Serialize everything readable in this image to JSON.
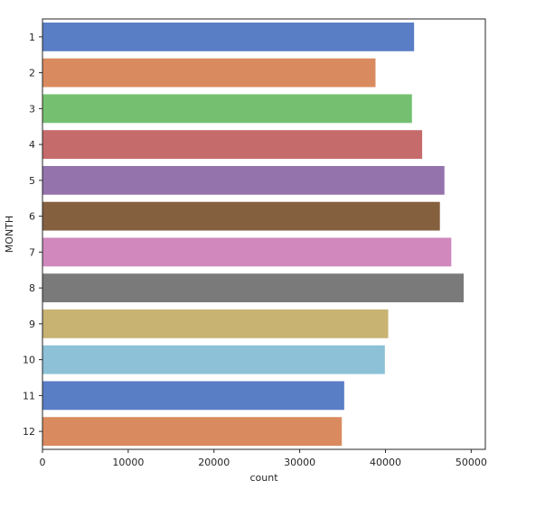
{
  "chart_data": {
    "type": "bar",
    "orientation": "horizontal",
    "title": "",
    "xlabel": "count",
    "ylabel": "MONTH",
    "categories": [
      "1",
      "2",
      "3",
      "4",
      "5",
      "6",
      "7",
      "8",
      "9",
      "10",
      "11",
      "12"
    ],
    "values": [
      43340,
      38840,
      43090,
      44280,
      46880,
      46350,
      47680,
      49120,
      40320,
      39930,
      35190,
      34910
    ],
    "colors": [
      "#5a7ec5",
      "#d98b5f",
      "#75c070",
      "#c56b6b",
      "#9473ad",
      "#85603f",
      "#d088bd",
      "#7a7a7a",
      "#c8b373",
      "#8cc1d8",
      "#5a7ec5",
      "#d98b5f"
    ],
    "xlim": [
      0,
      51650
    ],
    "xticks": [
      0,
      10000,
      20000,
      30000,
      40000,
      50000
    ],
    "xtick_labels": [
      "0",
      "10000",
      "20000",
      "30000",
      "40000",
      "50000"
    ],
    "grid": false,
    "legend": null
  }
}
